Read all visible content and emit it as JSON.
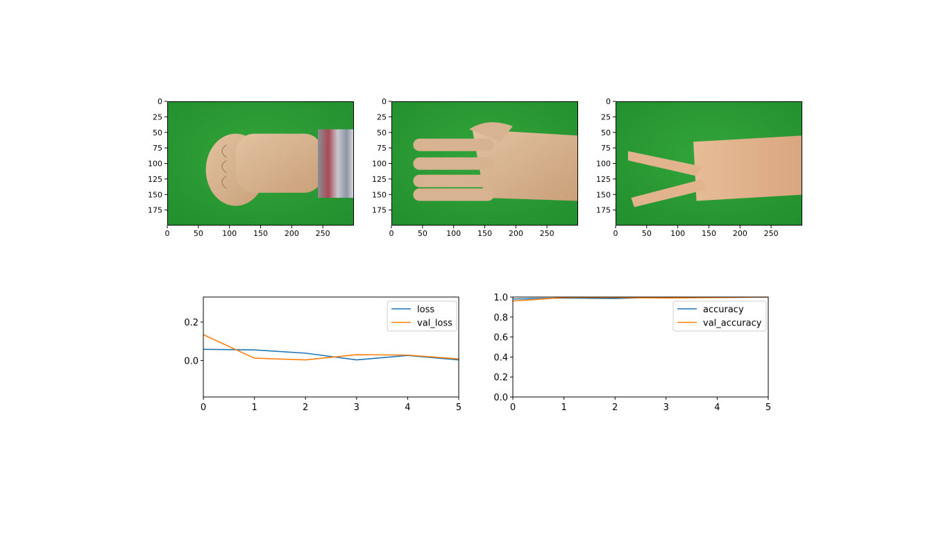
{
  "images": [
    {
      "description": "rock",
      "x_ticks": [
        "0",
        "50",
        "100",
        "150",
        "200",
        "250"
      ],
      "y_ticks": [
        "0",
        "25",
        "50",
        "75",
        "100",
        "125",
        "150",
        "175"
      ],
      "x_tick_values": [
        0,
        50,
        100,
        150,
        200,
        250
      ],
      "y_tick_values": [
        0,
        25,
        50,
        75,
        100,
        125,
        150,
        175
      ],
      "width": 300,
      "height": 200
    },
    {
      "description": "paper",
      "x_ticks": [
        "0",
        "50",
        "100",
        "150",
        "200",
        "250"
      ],
      "y_ticks": [
        "0",
        "25",
        "50",
        "75",
        "100",
        "125",
        "150",
        "175"
      ],
      "x_tick_values": [
        0,
        50,
        100,
        150,
        200,
        250
      ],
      "y_tick_values": [
        0,
        25,
        50,
        75,
        100,
        125,
        150,
        175
      ],
      "width": 300,
      "height": 200
    },
    {
      "description": "scissors",
      "x_ticks": [
        "0",
        "50",
        "100",
        "150",
        "200",
        "250"
      ],
      "y_ticks": [
        "0",
        "25",
        "50",
        "75",
        "100",
        "125",
        "150",
        "175"
      ],
      "x_tick_values": [
        0,
        50,
        100,
        150,
        200,
        250
      ],
      "y_tick_values": [
        0,
        25,
        50,
        75,
        100,
        125,
        150,
        175
      ],
      "width": 300,
      "height": 200
    }
  ],
  "chart_data": [
    {
      "type": "line",
      "title": "",
      "xlabel": "",
      "ylabel": "",
      "x": [
        0,
        1,
        2,
        3,
        4,
        5
      ],
      "xlim": [
        0,
        5
      ],
      "ylim": [
        -0.19,
        0.33
      ],
      "x_ticks": [
        0,
        1,
        2,
        3,
        4,
        5
      ],
      "y_ticks": [
        0.0,
        0.2
      ],
      "y_tick_labels": [
        "0.0",
        "0.2"
      ],
      "grid": false,
      "legend_position": "upper right",
      "series": [
        {
          "name": "loss",
          "color": "#1f77b4",
          "values": [
            0.058,
            0.055,
            0.038,
            0.003,
            0.026,
            0.003
          ]
        },
        {
          "name": "val_loss",
          "color": "#ff7f0e",
          "values": [
            0.134,
            0.012,
            0.003,
            0.03,
            0.028,
            0.008
          ]
        }
      ]
    },
    {
      "type": "line",
      "title": "",
      "xlabel": "",
      "ylabel": "",
      "x": [
        0,
        1,
        2,
        3,
        4,
        5
      ],
      "xlim": [
        0,
        5
      ],
      "ylim": [
        0.0,
        1.0
      ],
      "x_ticks": [
        0,
        1,
        2,
        3,
        4,
        5
      ],
      "y_ticks": [
        0.0,
        0.2,
        0.4,
        0.6,
        0.8,
        1.0
      ],
      "y_tick_labels": [
        "0.0",
        "0.2",
        "0.4",
        "0.6",
        "0.8",
        "1.0"
      ],
      "grid": false,
      "legend_position": "upper right",
      "series": [
        {
          "name": "accuracy",
          "color": "#1f77b4",
          "values": [
            0.98,
            0.99,
            0.985,
            1.0,
            0.995,
            1.0
          ]
        },
        {
          "name": "val_accuracy",
          "color": "#ff7f0e",
          "values": [
            0.96,
            0.995,
            0.995,
            0.99,
            0.995,
            1.0
          ]
        }
      ]
    }
  ]
}
